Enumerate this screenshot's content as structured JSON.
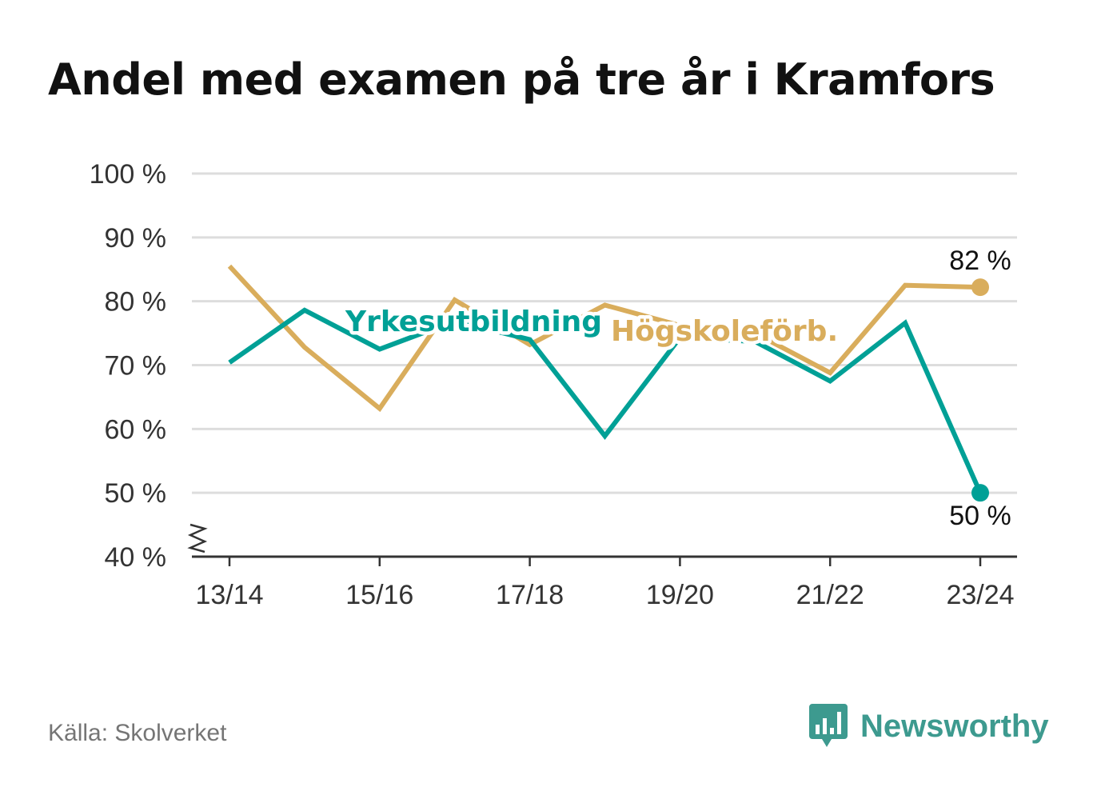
{
  "title": "Andel med examen på tre år i Kramfors",
  "source": "Källa: Skolverket",
  "brand": {
    "name": "Newsworthy",
    "logo_icon": "bar-chart-speech-bubble-icon",
    "color": "#3d9a8f"
  },
  "chart_data": {
    "type": "line",
    "title": "Andel med examen på tre år i Kramfors",
    "x": [
      "13/14",
      "14/15",
      "15/16",
      "16/17",
      "17/18",
      "18/19",
      "19/20",
      "20/21",
      "21/22",
      "22/23",
      "23/24"
    ],
    "x_tick_labels": [
      "13/14",
      "15/16",
      "17/18",
      "19/20",
      "21/22",
      "23/24"
    ],
    "ylim": [
      40,
      100
    ],
    "y_ticks": [
      40,
      50,
      60,
      70,
      80,
      90,
      100
    ],
    "y_tick_labels": [
      "40 %",
      "50 %",
      "60 %",
      "70 %",
      "80 %",
      "90 %",
      "100 %"
    ],
    "y_axis_break": true,
    "grid": true,
    "series": [
      {
        "name": "Yrkesutbildning",
        "color": "#00a096",
        "values": [
          70.4,
          78.6,
          72.5,
          76.9,
          74.0,
          58.9,
          74.3,
          73.7,
          67.5,
          76.6,
          50.0
        ],
        "end_label": "50 %"
      },
      {
        "name": "Högskoleförb.",
        "color": "#d9ad5c",
        "values": [
          85.5,
          72.8,
          63.2,
          80.2,
          73.2,
          79.4,
          76.2,
          75.0,
          68.8,
          82.5,
          82.2
        ],
        "end_label": "82 %"
      }
    ]
  }
}
